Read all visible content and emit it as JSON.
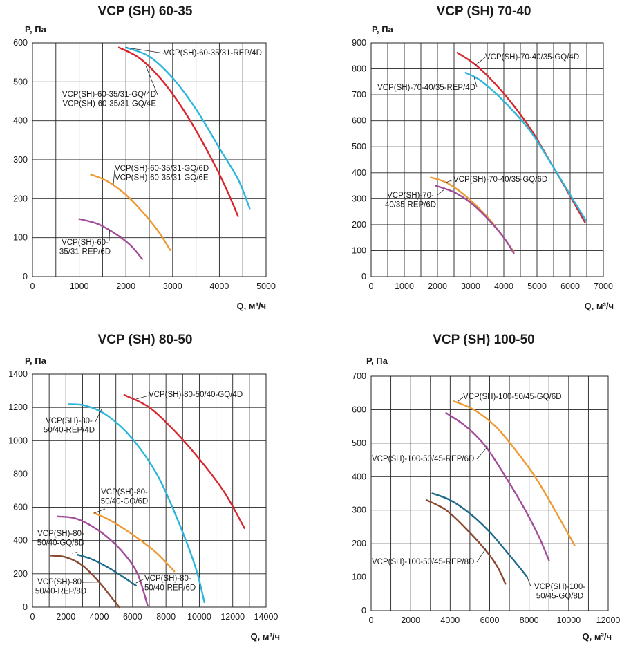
{
  "chart_data": [
    {
      "type": "line",
      "title": "VCP (SH) 60-35",
      "ylabel": "P, Па",
      "xlabel": "Q, м³/ч",
      "xlim": [
        0,
        5000
      ],
      "ylim": [
        0,
        600
      ],
      "xticks": [
        "0",
        "1000",
        "2000",
        "3000",
        "4000",
        "5000"
      ],
      "yticks": [
        "0",
        "100",
        "200",
        "300",
        "400",
        "500",
        "600"
      ],
      "grid": true,
      "series": [
        {
          "name": "VCP(SH)-60-35/31-REP/4D",
          "color": "#2cb6dc",
          "x": [
            2000,
            2500,
            3000,
            3500,
            4000,
            4400,
            4650
          ],
          "y": [
            588,
            565,
            510,
            430,
            330,
            250,
            175
          ]
        },
        {
          "name": "VCP(SH)-60-35/31-GQ/4D\nVCP(SH)-60-35/31-GQ/4E",
          "color": "#d8262c",
          "x": [
            1850,
            2300,
            2800,
            3300,
            3800,
            4150,
            4400
          ],
          "y": [
            588,
            560,
            500,
            415,
            310,
            225,
            155
          ]
        },
        {
          "name": "VCP(SH)-60-35/31-GQ/6D\nVCP(SH)-60-35/31-GQ/6E",
          "color": "#ee9a33",
          "x": [
            1250,
            1600,
            2000,
            2400,
            2700,
            2950
          ],
          "y": [
            262,
            245,
            210,
            160,
            115,
            68
          ]
        },
        {
          "name": "VCP(SH)-60-\n35/31-REP/6D",
          "color": "#a24d9a",
          "x": [
            1000,
            1400,
            1800,
            2100,
            2350
          ],
          "y": [
            148,
            135,
            108,
            80,
            45
          ]
        }
      ]
    },
    {
      "type": "line",
      "title": "VCP (SH) 70-40",
      "ylabel": "P, Па",
      "xlabel": "Q, м³/ч",
      "xlim": [
        0,
        7000
      ],
      "ylim": [
        0,
        900
      ],
      "xticks": [
        "0",
        "1000",
        "2000",
        "3000",
        "4000",
        "5000",
        "6000",
        "7000"
      ],
      "yticks": [
        "0",
        "100",
        "200",
        "300",
        "400",
        "500",
        "600",
        "700",
        "800",
        "900"
      ],
      "grid": true,
      "series": [
        {
          "name": "VCP(SH)-70-40/35-GQ/4D",
          "color": "#d8262c",
          "x": [
            2600,
            3200,
            4000,
            4800,
            5500,
            6000,
            6450
          ],
          "y": [
            862,
            810,
            705,
            570,
            420,
            310,
            208
          ]
        },
        {
          "name": "VCP(SH)-70-40/35-REP/4D",
          "color": "#2cb6dc",
          "x": [
            2850,
            3300,
            4000,
            4800,
            5500,
            6000,
            6480
          ],
          "y": [
            785,
            755,
            675,
            560,
            420,
            315,
            215
          ]
        },
        {
          "name": "VCP(SH)-70-40/35-GQ/6D",
          "color": "#ee9a33",
          "x": [
            1800,
            2300,
            2900,
            3500,
            4000,
            4300
          ],
          "y": [
            382,
            360,
            305,
            230,
            150,
            95
          ]
        },
        {
          "name": "VCP(SH)-70-\n40/35-REP/6D",
          "color": "#a24d9a",
          "x": [
            1950,
            2500,
            3000,
            3500,
            4000,
            4300
          ],
          "y": [
            350,
            325,
            285,
            225,
            150,
            90
          ]
        }
      ]
    },
    {
      "type": "line",
      "title": "VCP (SH) 80-50",
      "ylabel": "P, Па",
      "xlabel": "Q, м³/ч",
      "xlim": [
        0,
        14000
      ],
      "ylim": [
        0,
        1400
      ],
      "xticks": [
        "0",
        "2000",
        "4000",
        "6000",
        "8000",
        "10000",
        "12000",
        "14000"
      ],
      "yticks": [
        "0",
        "200",
        "400",
        "600",
        "800",
        "1000",
        "1200",
        "1400"
      ],
      "grid": true,
      "series": [
        {
          "name": "VCP(SH)-80-50/40-GQ/4D",
          "color": "#d8262c",
          "x": [
            5500,
            7000,
            8500,
            10000,
            11500,
            12700
          ],
          "y": [
            1275,
            1200,
            1060,
            890,
            690,
            475
          ]
        },
        {
          "name": "VCP(SH)-80-\n50/40-REP/4D",
          "color": "#2cb6dc",
          "x": [
            2200,
            3200,
            4500,
            6000,
            7500,
            8800,
            9800,
            10300
          ],
          "y": [
            1220,
            1210,
            1150,
            1010,
            790,
            500,
            230,
            30
          ]
        },
        {
          "name": "VCP(SH)-80-\n50/40-GQ/6D",
          "color": "#ee9a33",
          "x": [
            3700,
            4500,
            5500,
            6500,
            7500,
            8500
          ],
          "y": [
            565,
            530,
            470,
            400,
            320,
            215
          ]
        },
        {
          "name": "VCP(SH)-80-\n50/40-GQ/8D",
          "color": "#a24d9a",
          "x": [
            1500,
            2500,
            3500,
            4500,
            5500,
            6300,
            6900
          ],
          "y": [
            545,
            535,
            490,
            420,
            320,
            200,
            10
          ]
        },
        {
          "name": "VCP(SH)-80-\n50/40-REP/6D",
          "color": "#1e6a8a",
          "x": [
            2700,
            3500,
            4500,
            5300,
            6200
          ],
          "y": [
            315,
            290,
            240,
            190,
            130
          ]
        },
        {
          "name": "VCP(SH)-80-\n50/40-REP/8D",
          "color": "#8a4a32",
          "x": [
            1100,
            2000,
            3000,
            4000,
            4800,
            5200
          ],
          "y": [
            310,
            300,
            250,
            150,
            50,
            0
          ]
        }
      ]
    },
    {
      "type": "line",
      "title": "VCP (SH) 100-50",
      "ylabel": "P, Па",
      "xlabel": "Q, м³/ч",
      "xlim": [
        0,
        12000
      ],
      "ylim": [
        0,
        700
      ],
      "xticks": [
        "0",
        "2000",
        "4000",
        "6000",
        "8000",
        "10000",
        "12000"
      ],
      "yticks": [
        "0",
        "100",
        "200",
        "300",
        "400",
        "500",
        "600",
        "700"
      ],
      "grid": true,
      "series": [
        {
          "name": "VCP(SH)-100-50/45-GQ/6D",
          "color": "#ee9a33",
          "x": [
            4200,
            5200,
            6300,
            7300,
            8300,
            9300,
            10300
          ],
          "y": [
            625,
            600,
            550,
            480,
            400,
            300,
            195
          ]
        },
        {
          "name": "VCP(SH)-100-50/45-REP/6D",
          "color": "#a24d9a",
          "x": [
            3800,
            4800,
            5800,
            6800,
            7800,
            8500,
            9000
          ],
          "y": [
            590,
            550,
            490,
            400,
            300,
            220,
            150
          ]
        },
        {
          "name": "VCP(SH)-100-\n50/45-GQ/8D",
          "color": "#1e6a8a",
          "x": [
            3100,
            4000,
            5000,
            6000,
            6800,
            7500,
            7900
          ],
          "y": [
            350,
            330,
            290,
            235,
            180,
            130,
            100
          ]
        },
        {
          "name": "VCP(SH)-100-50/45-REP/8D",
          "color": "#8a4a32",
          "x": [
            2800,
            3800,
            4800,
            5800,
            6400,
            6800
          ],
          "y": [
            330,
            300,
            245,
            180,
            130,
            80
          ]
        }
      ]
    }
  ]
}
